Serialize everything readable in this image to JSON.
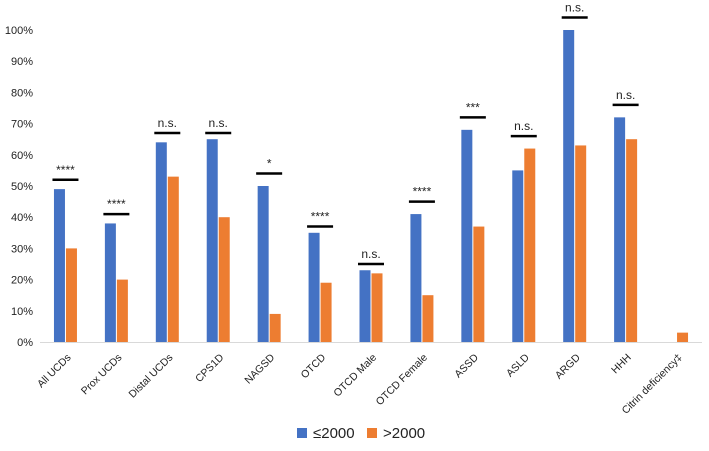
{
  "chart_data": {
    "type": "bar",
    "title": "",
    "xlabel": "",
    "ylabel": "",
    "ylim": [
      0,
      100
    ],
    "y_ticks": [
      "0%",
      "10%",
      "20%",
      "30%",
      "40%",
      "50%",
      "60%",
      "70%",
      "80%",
      "90%",
      "100%"
    ],
    "grid": false,
    "legend_position": "bottom-center",
    "categories": [
      "All UCDs",
      "Prox UCDs",
      "Distal UCDs",
      "CPS1D",
      "NAGSD",
      "OTCD",
      "OTCD Male",
      "OTCD Female",
      "ASSD",
      "ASLD",
      "ARGD",
      "HHH",
      "Citrin deficiency‡"
    ],
    "series": [
      {
        "name": "≤2000",
        "color": "#4472C4",
        "values": [
          49,
          38,
          64,
          65,
          50,
          35,
          23,
          41,
          68,
          55,
          100,
          72,
          null
        ]
      },
      {
        "name": ">2000",
        "color": "#ED7D31",
        "values": [
          30,
          20,
          53,
          40,
          9,
          19,
          22,
          15,
          37,
          62,
          63,
          65,
          3
        ]
      }
    ],
    "significance": [
      {
        "label": "****",
        "y": 52
      },
      {
        "label": "****",
        "y": 41
      },
      {
        "label": "n.s.",
        "y": 67
      },
      {
        "label": "n.s.",
        "y": 67
      },
      {
        "label": "*",
        "y": 54
      },
      {
        "label": "****",
        "y": 37
      },
      {
        "label": "n.s.",
        "y": 25
      },
      {
        "label": "****",
        "y": 45
      },
      {
        "label": "***",
        "y": 72
      },
      {
        "label": "n.s.",
        "y": 66
      },
      {
        "label": "n.s.",
        "y": 104
      },
      {
        "label": "n.s.",
        "y": 76
      },
      null
    ]
  }
}
